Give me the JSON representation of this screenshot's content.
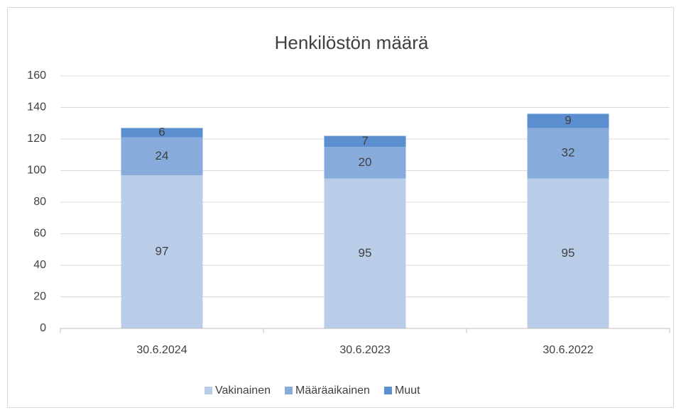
{
  "chart_data": {
    "type": "stacked_bar",
    "title": "Henkilöstön määrä",
    "categories": [
      "30.6.2024",
      "30.6.2023",
      "30.6.2022"
    ],
    "series": [
      {
        "name": "Vakinainen",
        "color": "#b9cde9",
        "values": [
          97,
          95,
          95
        ]
      },
      {
        "name": "Määräaikainen",
        "color": "#87acdc",
        "values": [
          24,
          20,
          32
        ]
      },
      {
        "name": "Muut",
        "color": "#5b8fcf",
        "values": [
          6,
          7,
          9
        ]
      }
    ],
    "ylim": [
      0,
      160
    ],
    "yticks": [
      0,
      20,
      40,
      60,
      80,
      100,
      120,
      140,
      160
    ],
    "grid": true,
    "legend": "bottom"
  }
}
